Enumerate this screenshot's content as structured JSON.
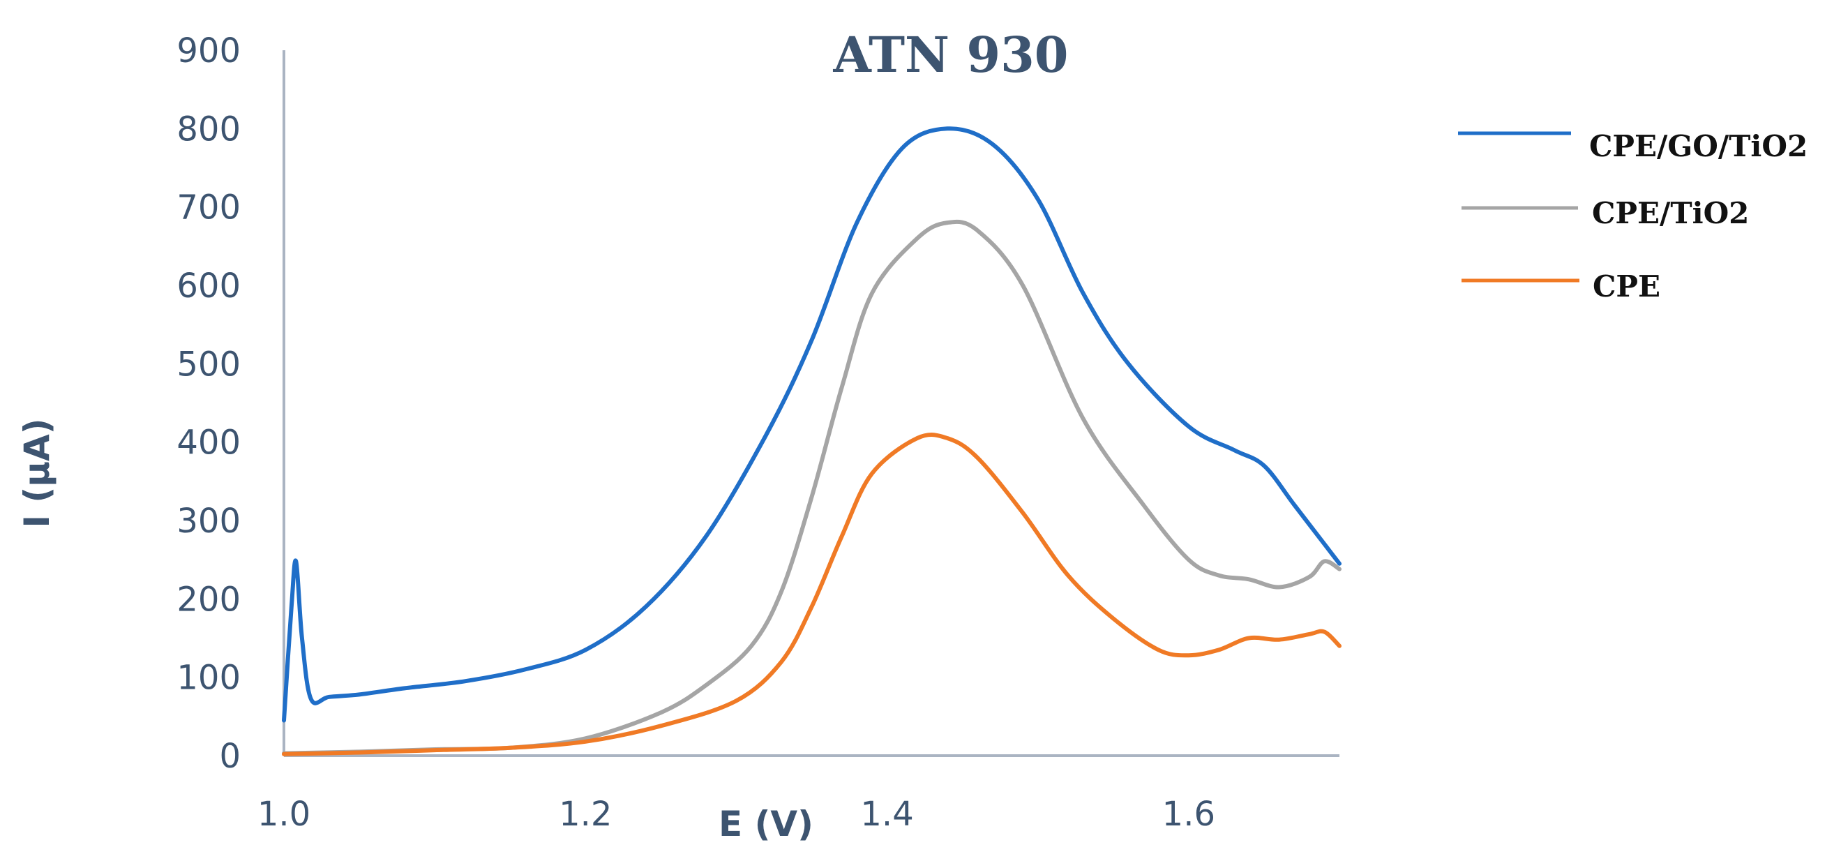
{
  "chart_data": {
    "type": "line",
    "title": "ATN 930",
    "xlabel": "E (V)",
    "ylabel": "I (µA)",
    "xlim": [
      1.0,
      1.7
    ],
    "ylim": [
      0,
      900
    ],
    "x_ticks": [
      {
        "value": 1.0,
        "label": "1.0"
      },
      {
        "value": 1.2,
        "label": "1.2"
      },
      {
        "value": 1.4,
        "label": "1.4"
      },
      {
        "value": 1.6,
        "label": "1.6"
      }
    ],
    "y_ticks": [
      {
        "value": 0,
        "label": "0"
      },
      {
        "value": 100,
        "label": "100"
      },
      {
        "value": 200,
        "label": "200"
      },
      {
        "value": 300,
        "label": "300"
      },
      {
        "value": 400,
        "label": "400"
      },
      {
        "value": 500,
        "label": "500"
      },
      {
        "value": 600,
        "label": "600"
      },
      {
        "value": 700,
        "label": "700"
      },
      {
        "value": 800,
        "label": "800"
      },
      {
        "value": 900,
        "label": "900"
      }
    ],
    "grid": false,
    "legend_position": "right",
    "series": [
      {
        "name": "CPE/GO/TiO2",
        "color": "#1f6ec8",
        "points": [
          [
            1.0,
            45
          ],
          [
            1.005,
            190
          ],
          [
            1.008,
            248
          ],
          [
            1.012,
            150
          ],
          [
            1.018,
            72
          ],
          [
            1.03,
            75
          ],
          [
            1.05,
            78
          ],
          [
            1.08,
            86
          ],
          [
            1.12,
            95
          ],
          [
            1.16,
            110
          ],
          [
            1.2,
            135
          ],
          [
            1.24,
            190
          ],
          [
            1.28,
            280
          ],
          [
            1.32,
            410
          ],
          [
            1.35,
            530
          ],
          [
            1.38,
            680
          ],
          [
            1.41,
            775
          ],
          [
            1.44,
            800
          ],
          [
            1.47,
            780
          ],
          [
            1.5,
            710
          ],
          [
            1.53,
            590
          ],
          [
            1.56,
            500
          ],
          [
            1.6,
            420
          ],
          [
            1.63,
            390
          ],
          [
            1.65,
            370
          ],
          [
            1.67,
            320
          ],
          [
            1.69,
            270
          ],
          [
            1.7,
            245
          ]
        ]
      },
      {
        "name": "CPE/TiO2",
        "color": "#a5a5a5",
        "points": [
          [
            1.0,
            3
          ],
          [
            1.05,
            5
          ],
          [
            1.1,
            8
          ],
          [
            1.15,
            10
          ],
          [
            1.2,
            22
          ],
          [
            1.25,
            55
          ],
          [
            1.28,
            90
          ],
          [
            1.31,
            140
          ],
          [
            1.33,
            210
          ],
          [
            1.35,
            330
          ],
          [
            1.37,
            470
          ],
          [
            1.39,
            590
          ],
          [
            1.42,
            660
          ],
          [
            1.44,
            680
          ],
          [
            1.46,
            670
          ],
          [
            1.49,
            600
          ],
          [
            1.53,
            430
          ],
          [
            1.57,
            320
          ],
          [
            1.6,
            250
          ],
          [
            1.62,
            230
          ],
          [
            1.64,
            225
          ],
          [
            1.66,
            215
          ],
          [
            1.68,
            228
          ],
          [
            1.69,
            248
          ],
          [
            1.7,
            238
          ]
        ]
      },
      {
        "name": "CPE",
        "color": "#f07a25",
        "points": [
          [
            1.0,
            2
          ],
          [
            1.05,
            4
          ],
          [
            1.1,
            7
          ],
          [
            1.15,
            10
          ],
          [
            1.2,
            18
          ],
          [
            1.25,
            38
          ],
          [
            1.3,
            70
          ],
          [
            1.33,
            120
          ],
          [
            1.35,
            190
          ],
          [
            1.37,
            280
          ],
          [
            1.39,
            360
          ],
          [
            1.42,
            405
          ],
          [
            1.44,
            405
          ],
          [
            1.46,
            380
          ],
          [
            1.49,
            310
          ],
          [
            1.52,
            230
          ],
          [
            1.55,
            175
          ],
          [
            1.58,
            135
          ],
          [
            1.6,
            128
          ],
          [
            1.62,
            135
          ],
          [
            1.64,
            150
          ],
          [
            1.66,
            148
          ],
          [
            1.68,
            155
          ],
          [
            1.69,
            158
          ],
          [
            1.7,
            140
          ]
        ]
      }
    ]
  }
}
